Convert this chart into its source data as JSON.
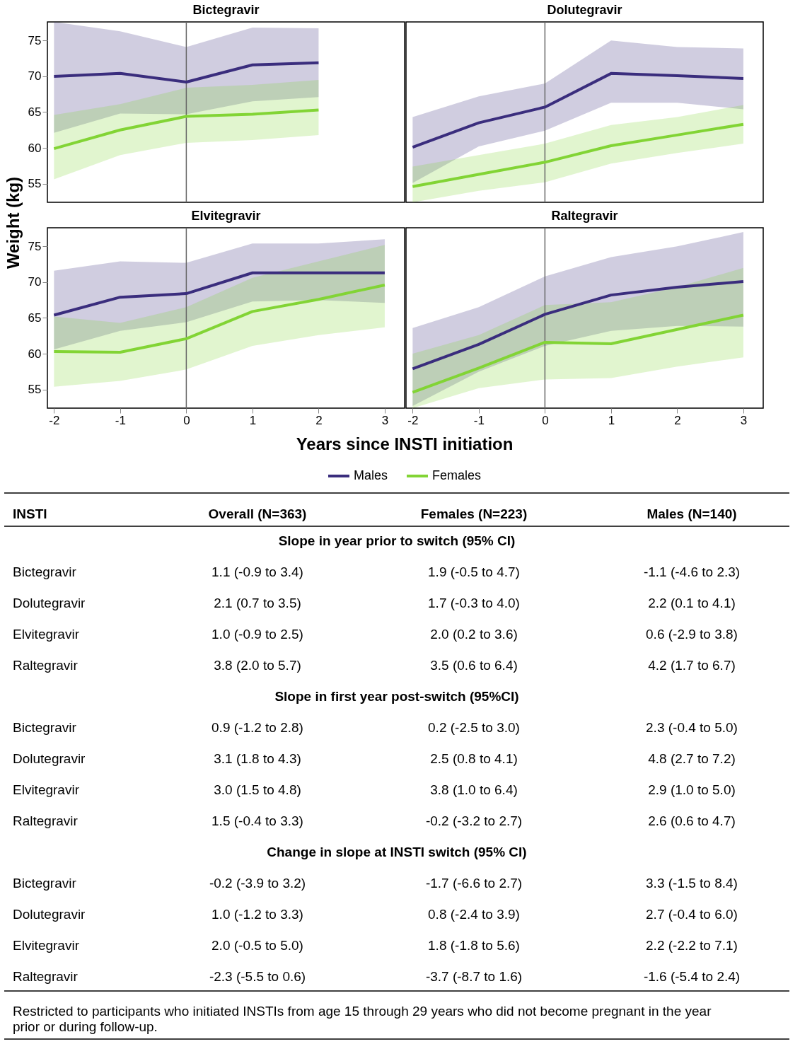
{
  "chart_data": [
    {
      "type": "line",
      "title": "Bictegravir",
      "ylabel": "Weight (kg)",
      "legend": "bottom",
      "x": [
        -2,
        -1,
        0,
        1,
        2
      ],
      "xlim": [
        -2.1,
        3.3
      ],
      "xticks": [
        -2,
        -1,
        0,
        1,
        2,
        3
      ],
      "ylim": [
        52.4,
        77.6
      ],
      "yticks": [
        55,
        60,
        65,
        70,
        75
      ],
      "tick_labels": "y",
      "ref_lines": [
        {
          "axis": "x",
          "value": 0,
          "color": "#666666"
        }
      ],
      "series": [
        {
          "name": "Males",
          "color": "#3a2d7d",
          "values": [
            70.0,
            70.4,
            69.2,
            71.6,
            71.9
          ],
          "lower": [
            62.1,
            64.8,
            64.7,
            66.5,
            67.1
          ],
          "upper": [
            77.6,
            76.3,
            74.1,
            76.8,
            76.7
          ]
        },
        {
          "name": "Females",
          "color": "#82d435",
          "values": [
            59.9,
            62.5,
            64.4,
            64.7,
            65.3
          ],
          "lower": [
            55.6,
            59.0,
            60.7,
            61.1,
            61.8
          ],
          "upper": [
            64.6,
            66.1,
            68.4,
            68.8,
            69.5
          ]
        }
      ]
    },
    {
      "type": "line",
      "title": "Dolutegravir",
      "x": [
        -2,
        -1,
        0,
        1,
        2,
        3
      ],
      "xlim": [
        -2.1,
        3.3
      ],
      "xticks": [
        -2,
        -1,
        0,
        1,
        2,
        3
      ],
      "ylim": [
        52.4,
        77.6
      ],
      "yticks": [
        55,
        60,
        65,
        70,
        75
      ],
      "tick_labels": false,
      "ref_lines": [
        {
          "axis": "x",
          "value": 0,
          "color": "#666666"
        }
      ],
      "series": [
        {
          "name": "Males",
          "color": "#3a2d7d",
          "values": [
            60.1,
            63.5,
            65.7,
            70.4,
            70.1,
            69.7
          ],
          "lower": [
            55.1,
            60.2,
            62.4,
            66.3,
            66.3,
            65.4
          ],
          "upper": [
            64.3,
            67.2,
            69.0,
            75.0,
            74.1,
            73.9
          ]
        },
        {
          "name": "Females",
          "color": "#82d435",
          "values": [
            54.6,
            56.3,
            58.0,
            60.3,
            61.8,
            63.3
          ],
          "lower": [
            52.4,
            54.0,
            55.2,
            57.8,
            59.3,
            60.6
          ],
          "upper": [
            57.4,
            59.0,
            60.6,
            63.2,
            64.3,
            66.0
          ]
        }
      ]
    },
    {
      "type": "line",
      "title": "Elvitegravir",
      "xlabel": "Years since INSTI initiation",
      "x": [
        -2,
        -1,
        0,
        1,
        2,
        3
      ],
      "xlim": [
        -2.1,
        3.3
      ],
      "xticks": [
        -2,
        -1,
        0,
        1,
        2,
        3
      ],
      "ylim": [
        52.4,
        77.6
      ],
      "yticks": [
        55,
        60,
        65,
        70,
        75
      ],
      "ref_lines": [
        {
          "axis": "x",
          "value": 0,
          "color": "#666666"
        }
      ],
      "series": [
        {
          "name": "Males",
          "color": "#3a2d7d",
          "values": [
            65.4,
            67.9,
            68.4,
            71.3,
            71.3,
            71.3
          ],
          "lower": [
            60.6,
            63.2,
            64.4,
            67.3,
            67.5,
            67.1
          ],
          "upper": [
            71.6,
            72.9,
            72.7,
            75.4,
            75.4,
            76.0
          ]
        },
        {
          "name": "Females",
          "color": "#82d435",
          "values": [
            60.3,
            60.2,
            62.1,
            65.9,
            67.6,
            69.6
          ],
          "lower": [
            55.4,
            56.2,
            57.8,
            61.1,
            62.6,
            63.7
          ],
          "upper": [
            65.2,
            64.3,
            66.5,
            70.6,
            72.9,
            75.2
          ]
        }
      ]
    },
    {
      "type": "line",
      "title": "Raltegravir",
      "x": [
        -2,
        -1,
        0,
        1,
        2,
        3
      ],
      "xlim": [
        -2.1,
        3.3
      ],
      "xticks": [
        -2,
        -1,
        0,
        1,
        2,
        3
      ],
      "ylim": [
        52.4,
        77.6
      ],
      "yticks": [
        55,
        60,
        65,
        70,
        75
      ],
      "tick_labels": "x",
      "ref_lines": [
        {
          "axis": "x",
          "value": 0,
          "color": "#666666"
        }
      ],
      "series": [
        {
          "name": "Males",
          "color": "#3a2d7d",
          "values": [
            57.9,
            61.3,
            65.5,
            68.2,
            69.3,
            70.1
          ],
          "lower": [
            52.7,
            57.5,
            61.1,
            63.2,
            63.9,
            63.8
          ],
          "upper": [
            63.6,
            66.5,
            70.8,
            73.5,
            75.0,
            77.0
          ]
        },
        {
          "name": "Females",
          "color": "#82d435",
          "values": [
            54.6,
            58.0,
            61.6,
            61.4,
            63.4,
            65.4
          ],
          "lower": [
            52.4,
            55.2,
            56.4,
            56.6,
            58.2,
            59.5
          ],
          "upper": [
            60.0,
            62.6,
            66.8,
            67.2,
            69.3,
            72.0
          ]
        }
      ]
    },
    {
      "type": "other",
      "annotations": [
        "INSTI",
        "Overall (N=363)",
        "Females (N=223)",
        "Males (N=140)",
        "Slope in year prior to switch (95% CI)",
        "Bictegravir",
        "1.1 (-0.9 to 3.4)",
        "1.9 (-0.5 to 4.7)",
        "-1.1 (-4.6 to 2.3)",
        "Dolutegravir",
        "2.1 (0.7 to 3.5)",
        "1.7 (-0.3 to 4.0)",
        "2.2 (0.1 to 4.1)",
        "Elvitegravir",
        "1.0 (-0.9 to 2.5)",
        "2.0 (0.2 to 3.6)",
        "0.6 (-2.9 to 3.8)",
        "Raltegravir",
        "3.8 (2.0 to 5.7)",
        "3.5 (0.6 to 6.4)",
        "4.2 (1.7 to 6.7)",
        "Slope in first year post-switch (95%CI)",
        "Bictegravir",
        "0.9 (-1.2 to 2.8)",
        "0.2 (-2.5 to 3.0)",
        "2.3 (-0.4 to 5.0)",
        "Dolutegravir",
        "3.1 (1.8 to 4.3)",
        "2.5 (0.8 to 4.1)",
        "4.8 (2.7 to 7.2)",
        "Elvitegravir",
        "3.0 (1.5 to 4.8)",
        "3.8 (1.0 to 6.4)",
        "2.9 (1.0 to 5.0)",
        "Raltegravir",
        "1.5 (-0.4 to 3.3)",
        "-0.2 (-3.2 to 2.7)",
        "2.6 (0.6 to 4.7)",
        "Change in slope at INSTI switch (95% CI)",
        "Bictegravir",
        "-0.2 (-3.9 to 3.2)",
        "-1.7 (-6.6 to 2.7)",
        "3.3 (-1.5 to 8.4)",
        "Dolutegravir",
        "1.0 (-1.2 to 3.3)",
        "0.8 (-2.4 to 3.9)",
        "2.7 (-0.4 to 6.0)",
        "Elvitegravir",
        "2.0 (-0.5 to 5.0)",
        "1.8 (-1.8 to 5.6)",
        "2.2 (-2.2 to 7.1)",
        "Raltegravir",
        "-2.3 (-5.5 to 0.6)",
        "-3.7 (-8.7 to 1.6)",
        "-1.6 (-5.4 to 2.4)",
        "Restricted to participants who initiated INSTIs from age 15 through 29 years who did not become pregnant in the year prior or during follow-up."
      ]
    }
  ]
}
